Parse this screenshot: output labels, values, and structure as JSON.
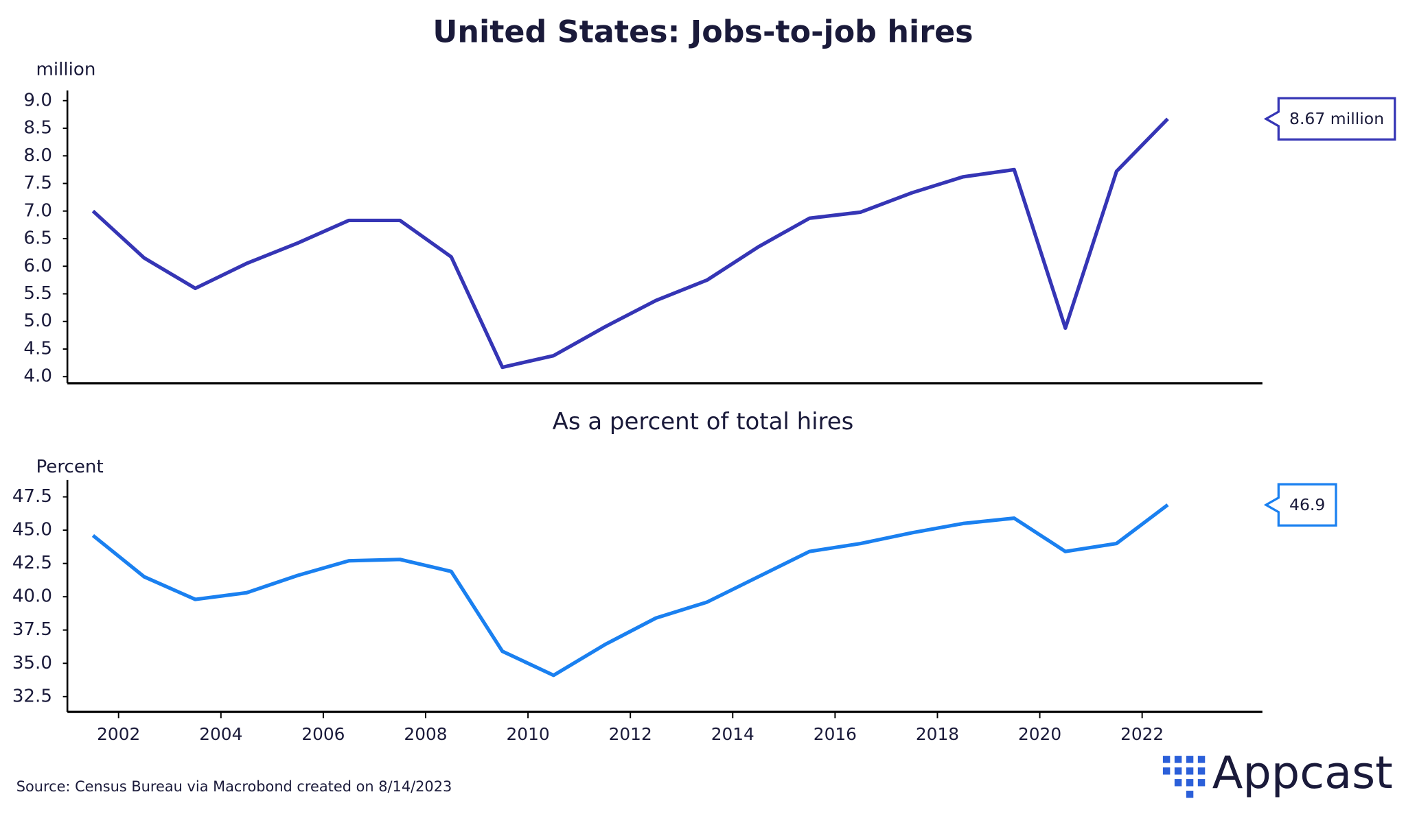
{
  "source": "Source:  Census Bureau via Macrobond created on 8/14/2023",
  "logo": "Appcast",
  "chart_data": [
    {
      "type": "line",
      "title": "United States: Jobs-to-job hires",
      "y_label": "million",
      "x": [
        2001.5,
        2002.5,
        2003.5,
        2004.5,
        2005.5,
        2006.5,
        2007.5,
        2008.5,
        2009.5,
        2010.5,
        2011.5,
        2012.5,
        2013.5,
        2014.5,
        2015.5,
        2016.5,
        2017.5,
        2018.5,
        2019.5,
        2020.5,
        2021.5,
        2022.5
      ],
      "series": [
        {
          "name": "Jobs-to-job hires",
          "color": "#3535b5",
          "values": [
            7.0,
            6.15,
            5.6,
            6.05,
            6.42,
            6.83,
            6.83,
            6.17,
            4.17,
            4.38,
            4.9,
            5.38,
            5.75,
            6.35,
            6.87,
            6.98,
            7.33,
            7.62,
            7.75,
            4.88,
            7.72,
            8.67
          ],
          "value_labels": [
            null,
            null,
            null,
            null,
            null,
            null,
            null,
            null,
            null,
            null,
            null,
            null,
            null,
            null,
            null,
            null,
            null,
            null,
            null,
            null,
            null,
            "8.67 million"
          ]
        }
      ],
      "xlim": [
        2001,
        2024.35
      ],
      "ylim": [
        3.88,
        9.12
      ],
      "yticks": [
        {
          "value": 4,
          "label": "4.0"
        },
        4.5,
        {
          "value": 5,
          "label": "5.0"
        },
        5.5,
        {
          "value": 6,
          "label": "6.0"
        },
        6.5,
        {
          "value": 7,
          "label": "7.0"
        },
        7.5,
        {
          "value": 8,
          "label": "8.0"
        },
        8.5,
        {
          "value": 9,
          "label": "9.0"
        }
      ]
    },
    {
      "type": "line",
      "title": "As a percent of total hires",
      "y_label": "Percent",
      "x": [
        2001.5,
        2002.5,
        2003.5,
        2004.5,
        2005.5,
        2006.5,
        2007.5,
        2008.5,
        2009.5,
        2010.5,
        2011.5,
        2012.5,
        2013.5,
        2014.5,
        2015.5,
        2016.5,
        2017.5,
        2018.5,
        2019.5,
        2020.5,
        2021.5,
        2022.5
      ],
      "series": [
        {
          "name": "As a percent of total hires",
          "color": "#1a80f0",
          "values": [
            44.6,
            41.5,
            39.8,
            40.3,
            41.6,
            42.7,
            42.8,
            41.9,
            35.9,
            34.1,
            36.4,
            38.4,
            39.6,
            41.5,
            43.4,
            44.0,
            44.8,
            45.5,
            45.9,
            43.4,
            44.0,
            46.9
          ]
        }
      ],
      "xlim": [
        2001,
        2024.35
      ],
      "ylim": [
        31.35,
        48.5
      ],
      "xticks": [
        2002,
        2004,
        2006,
        2008,
        2010,
        2012,
        2014,
        2016,
        2018,
        2020,
        2022
      ],
      "yticks": [
        32.5,
        {
          "value": 35,
          "label": "35.0"
        },
        37.5,
        {
          "value": 40,
          "label": "40.0"
        },
        42.5,
        {
          "value": 45,
          "label": "45.0"
        },
        47.5
      ]
    }
  ]
}
